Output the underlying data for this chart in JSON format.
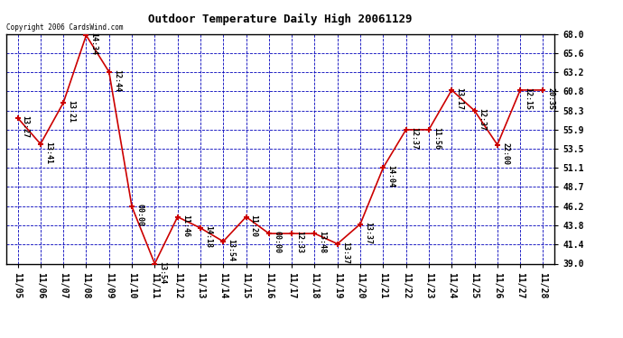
{
  "title": "Outdoor Temperature Daily High 20061129",
  "copyright_text": "Copyright 2006 CardsWind.com",
  "x_labels": [
    "11/05",
    "11/06",
    "11/07",
    "11/08",
    "11/09",
    "11/10",
    "11/11",
    "11/12",
    "11/13",
    "11/14",
    "11/15",
    "11/16",
    "11/17",
    "11/18",
    "11/19",
    "11/20",
    "11/21",
    "11/22",
    "11/23",
    "11/24",
    "11/25",
    "11/26",
    "11/27",
    "11/28"
  ],
  "y_values": [
    57.4,
    54.1,
    59.3,
    67.8,
    63.2,
    46.2,
    39.0,
    44.9,
    43.5,
    41.8,
    44.9,
    42.8,
    42.8,
    42.8,
    41.5,
    44.0,
    51.1,
    55.9,
    55.9,
    60.9,
    58.3,
    54.0,
    60.9,
    60.9
  ],
  "point_labels": [
    "13:27",
    "13:41",
    "13:21",
    "14:34",
    "12:44",
    "00:00",
    "13:54",
    "11:46",
    "14:18",
    "13:54",
    "11:20",
    "00:00",
    "12:33",
    "13:48",
    "13:37",
    "13:37",
    "14:04",
    "12:37",
    "11:56",
    "13:17",
    "12:37",
    "22:00",
    "12:15",
    "20:35"
  ],
  "y_ticks": [
    39.0,
    41.4,
    43.8,
    46.2,
    48.7,
    51.1,
    53.5,
    55.9,
    58.3,
    60.8,
    63.2,
    65.6,
    68.0
  ],
  "ylim": [
    39.0,
    68.0
  ],
  "line_color": "#cc0000",
  "marker_color": "#cc0000",
  "bg_color": "#ffffff",
  "plot_bg_color": "#ffffff",
  "grid_color": "#0000bb",
  "title_fontsize": 9,
  "tick_fontsize": 7,
  "label_fontsize": 6
}
